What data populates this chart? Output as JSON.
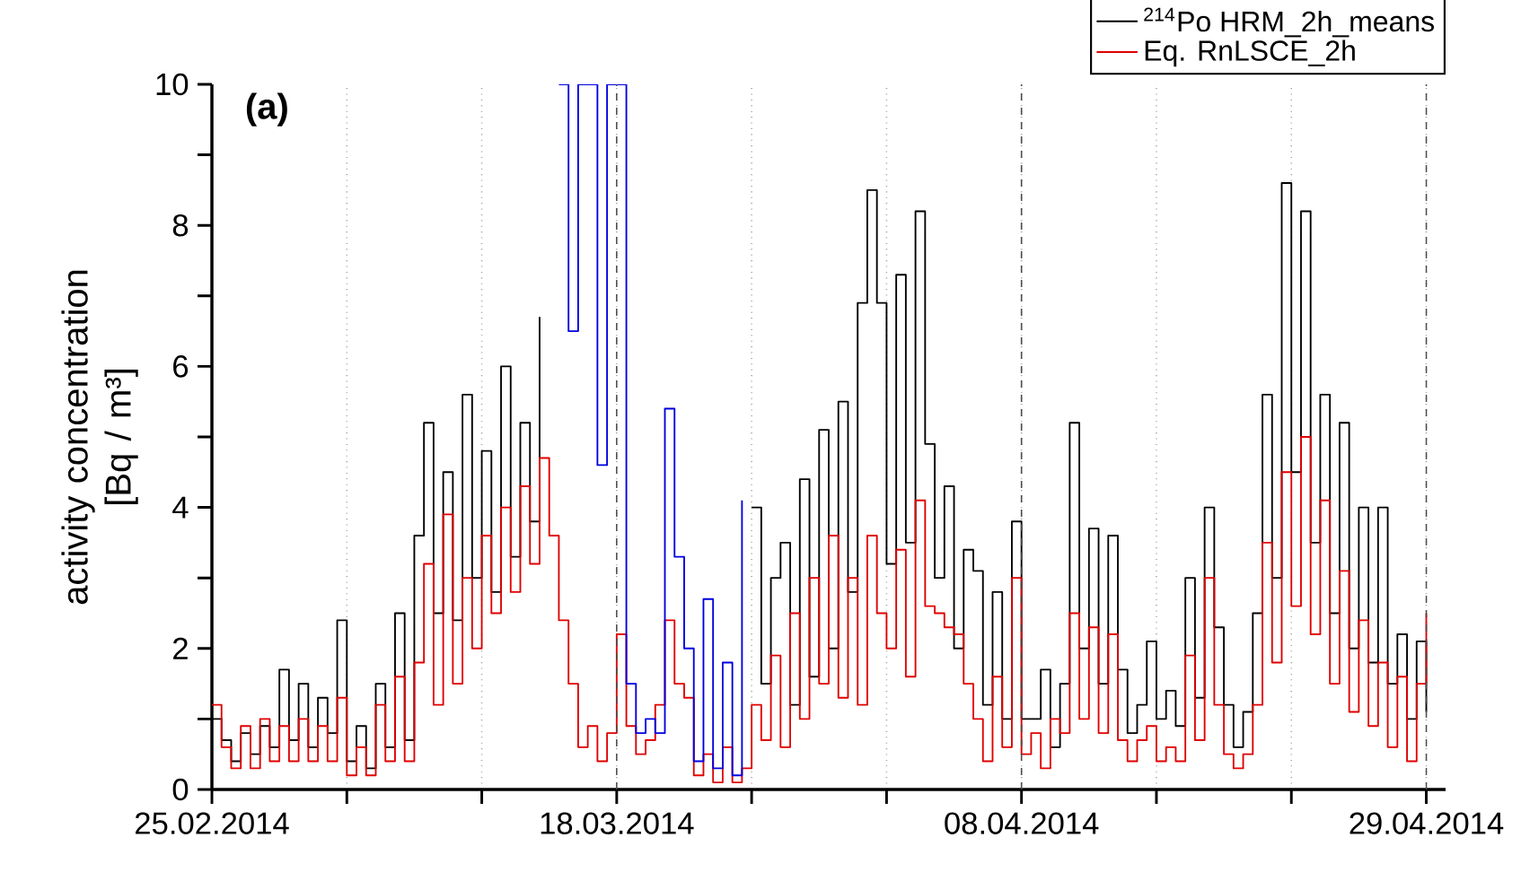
{
  "chart_data": {
    "type": "step",
    "ylabel": "activity concentration [Bq / m³]",
    "annotations": [
      "(a)"
    ],
    "xlim": [
      "2014-02-25",
      "2014-04-30"
    ],
    "ylim": [
      0,
      10
    ],
    "xticks": [
      {
        "value": "2014-02-25",
        "label": "25.02.2014"
      },
      {
        "value": "2014-03-04",
        "label": null
      },
      {
        "value": "2014-03-11",
        "label": null
      },
      {
        "value": "2014-03-18",
        "label": "18.03.2014"
      },
      {
        "value": "2014-03-25",
        "label": null
      },
      {
        "value": "2014-04-01",
        "label": null
      },
      {
        "value": "2014-04-08",
        "label": "08.04.2014"
      },
      {
        "value": "2014-04-15",
        "label": null
      },
      {
        "value": "2014-04-22",
        "label": null
      },
      {
        "value": "2014-04-29",
        "label": "29.04.2014"
      }
    ],
    "yticks": [
      0,
      {
        "value": 1,
        "label": null
      },
      2,
      {
        "value": 3,
        "label": null
      },
      4,
      {
        "value": 5,
        "label": null
      },
      6,
      {
        "value": 7,
        "label": null
      },
      8,
      {
        "value": 9,
        "label": null
      },
      10
    ],
    "grid": "x",
    "legend": "top right",
    "line_style": "solid",
    "marker": "none",
    "x": [
      "2014-02-25T00:00",
      "2014-02-25T12:00",
      "2014-02-26T00:00",
      "2014-02-26T12:00",
      "2014-02-27T00:00",
      "2014-02-27T12:00",
      "2014-02-28T00:00",
      "2014-02-28T12:00",
      "2014-03-01T00:00",
      "2014-03-01T12:00",
      "2014-03-02T00:00",
      "2014-03-02T12:00",
      "2014-03-03T00:00",
      "2014-03-03T12:00",
      "2014-03-04T00:00",
      "2014-03-04T12:00",
      "2014-03-05T00:00",
      "2014-03-05T12:00",
      "2014-03-06T00:00",
      "2014-03-06T12:00",
      "2014-03-07T00:00",
      "2014-03-07T12:00",
      "2014-03-08T00:00",
      "2014-03-08T12:00",
      "2014-03-09T00:00",
      "2014-03-09T12:00",
      "2014-03-10T00:00",
      "2014-03-10T12:00",
      "2014-03-11T00:00",
      "2014-03-11T12:00",
      "2014-03-12T00:00",
      "2014-03-12T12:00",
      "2014-03-13T00:00",
      "2014-03-13T12:00",
      "2014-03-14T00:00",
      "2014-03-14T12:00",
      "2014-03-15T00:00",
      "2014-03-15T12:00",
      "2014-03-16T00:00",
      "2014-03-16T12:00",
      "2014-03-17T00:00",
      "2014-03-17T12:00",
      "2014-03-18T00:00",
      "2014-03-18T12:00",
      "2014-03-19T00:00",
      "2014-03-19T12:00",
      "2014-03-20T00:00",
      "2014-03-20T12:00",
      "2014-03-21T00:00",
      "2014-03-21T12:00",
      "2014-03-22T00:00",
      "2014-03-22T12:00",
      "2014-03-23T00:00",
      "2014-03-23T12:00",
      "2014-03-24T00:00",
      "2014-03-24T12:00",
      "2014-03-25T00:00",
      "2014-03-25T12:00",
      "2014-03-26T00:00",
      "2014-03-26T12:00",
      "2014-03-27T00:00",
      "2014-03-27T12:00",
      "2014-03-28T00:00",
      "2014-03-28T12:00",
      "2014-03-29T00:00",
      "2014-03-29T12:00",
      "2014-03-30T00:00",
      "2014-03-30T12:00",
      "2014-03-31T00:00",
      "2014-03-31T12:00",
      "2014-04-01T00:00",
      "2014-04-01T12:00",
      "2014-04-02T00:00",
      "2014-04-02T12:00",
      "2014-04-03T00:00",
      "2014-04-03T12:00",
      "2014-04-04T00:00",
      "2014-04-04T12:00",
      "2014-04-05T00:00",
      "2014-04-05T12:00",
      "2014-04-06T00:00",
      "2014-04-06T12:00",
      "2014-04-07T00:00",
      "2014-04-07T12:00",
      "2014-04-08T00:00",
      "2014-04-08T12:00",
      "2014-04-09T00:00",
      "2014-04-09T12:00",
      "2014-04-10T00:00",
      "2014-04-10T12:00",
      "2014-04-11T00:00",
      "2014-04-11T12:00",
      "2014-04-12T00:00",
      "2014-04-12T12:00",
      "2014-04-13T00:00",
      "2014-04-13T12:00",
      "2014-04-14T00:00",
      "2014-04-14T12:00",
      "2014-04-15T00:00",
      "2014-04-15T12:00",
      "2014-04-16T00:00",
      "2014-04-16T12:00",
      "2014-04-17T00:00",
      "2014-04-17T12:00",
      "2014-04-18T00:00",
      "2014-04-18T12:00",
      "2014-04-19T00:00",
      "2014-04-19T12:00",
      "2014-04-20T00:00",
      "2014-04-20T12:00",
      "2014-04-21T00:00",
      "2014-04-21T12:00",
      "2014-04-22T00:00",
      "2014-04-22T12:00",
      "2014-04-23T00:00",
      "2014-04-23T12:00",
      "2014-04-24T00:00",
      "2014-04-24T12:00",
      "2014-04-25T00:00",
      "2014-04-25T12:00",
      "2014-04-26T00:00",
      "2014-04-26T12:00",
      "2014-04-27T00:00",
      "2014-04-27T12:00",
      "2014-04-28T00:00",
      "2014-04-28T12:00",
      "2014-04-29T00:00"
    ],
    "series": [
      {
        "name": "$^{214}$Po HRM_2h_means",
        "color": "#000000",
        "values": [
          1.0,
          0.7,
          0.4,
          0.8,
          0.5,
          0.9,
          0.6,
          1.7,
          0.7,
          1.5,
          0.6,
          1.3,
          0.8,
          2.4,
          0.4,
          0.9,
          0.3,
          1.5,
          0.6,
          2.5,
          0.7,
          3.6,
          5.2,
          2.5,
          4.5,
          2.4,
          5.6,
          3.0,
          4.8,
          2.8,
          6.0,
          3.3,
          5.2,
          3.8,
          6.7,
          null,
          null,
          null,
          null,
          null,
          null,
          null,
          null,
          null,
          null,
          null,
          null,
          null,
          null,
          null,
          null,
          null,
          null,
          null,
          null,
          null,
          4.0,
          1.5,
          3.0,
          3.5,
          1.2,
          4.4,
          1.6,
          5.1,
          2.0,
          5.5,
          2.8,
          6.9,
          8.5,
          6.9,
          3.2,
          7.3,
          3.5,
          8.2,
          4.9,
          3.0,
          4.3,
          2.0,
          3.4,
          3.1,
          1.2,
          2.8,
          1.0,
          3.8,
          1.0,
          1.0,
          1.7,
          0.6,
          1.5,
          5.2,
          2.0,
          3.7,
          1.5,
          3.6,
          1.7,
          0.8,
          1.2,
          2.1,
          1.0,
          1.4,
          0.9,
          3.0,
          1.3,
          4.0,
          2.3,
          1.2,
          0.6,
          1.1,
          2.5,
          5.6,
          3.0,
          8.6,
          4.5,
          8.2,
          3.5,
          5.6,
          2.5,
          5.2,
          2.0,
          4.0,
          1.8,
          4.0,
          1.5,
          2.2,
          1.0,
          2.1,
          1.1
        ]
      },
      {
        "name": "Eq. RnLSCE_2h",
        "color": "#e00000",
        "values": [
          1.2,
          0.6,
          0.3,
          0.9,
          0.3,
          1.0,
          0.4,
          0.9,
          0.4,
          1.0,
          0.4,
          0.9,
          0.4,
          1.3,
          0.2,
          0.6,
          0.2,
          1.2,
          0.4,
          1.6,
          0.4,
          1.8,
          3.2,
          1.2,
          3.9,
          1.5,
          3.0,
          2.0,
          3.6,
          2.5,
          4.0,
          2.8,
          4.3,
          3.2,
          4.7,
          3.6,
          2.4,
          1.5,
          0.6,
          0.9,
          0.4,
          0.8,
          2.2,
          0.9,
          0.5,
          0.7,
          1.2,
          2.4,
          1.5,
          1.3,
          0.2,
          0.5,
          0.1,
          0.6,
          0.1,
          0.3,
          1.2,
          0.7,
          1.9,
          0.6,
          2.5,
          1.0,
          3.0,
          1.5,
          3.6,
          1.3,
          3.0,
          1.2,
          3.6,
          2.5,
          2.0,
          3.4,
          1.6,
          4.1,
          2.6,
          2.5,
          2.3,
          2.2,
          1.5,
          1.0,
          0.4,
          1.6,
          0.6,
          3.0,
          0.5,
          0.8,
          0.3,
          1.0,
          0.8,
          2.5,
          1.0,
          2.3,
          0.8,
          2.2,
          0.7,
          0.4,
          0.7,
          0.9,
          0.4,
          0.6,
          0.4,
          1.9,
          0.7,
          3.0,
          1.2,
          0.5,
          0.3,
          0.5,
          1.2,
          3.5,
          1.8,
          4.5,
          2.6,
          5.0,
          2.2,
          4.1,
          1.5,
          3.1,
          1.1,
          2.4,
          0.9,
          1.8,
          0.6,
          1.6,
          0.4,
          1.5,
          2.5
        ]
      },
      {
        "color": "#0000e0",
        "x": [
          "2014-03-15T00:00",
          "2014-03-15T12:00",
          "2014-03-16T00:00",
          "2014-03-16T12:00",
          "2014-03-17T00:00",
          "2014-03-17T12:00",
          "2014-03-18T00:00",
          "2014-03-18T12:00",
          "2014-03-19T00:00",
          "2014-03-19T12:00",
          "2014-03-20T00:00",
          "2014-03-20T12:00",
          "2014-03-21T00:00",
          "2014-03-21T12:00",
          "2014-03-22T00:00",
          "2014-03-22T12:00",
          "2014-03-23T00:00",
          "2014-03-23T12:00",
          "2014-03-24T00:00",
          "2014-03-24T12:00"
        ],
        "values": [
          10,
          6.5,
          10,
          10,
          4.6,
          10,
          10,
          1.5,
          0.8,
          1.0,
          0.8,
          5.4,
          3.3,
          2.0,
          0.4,
          2.7,
          0.3,
          1.8,
          0.2,
          4.1
        ]
      }
    ]
  }
}
